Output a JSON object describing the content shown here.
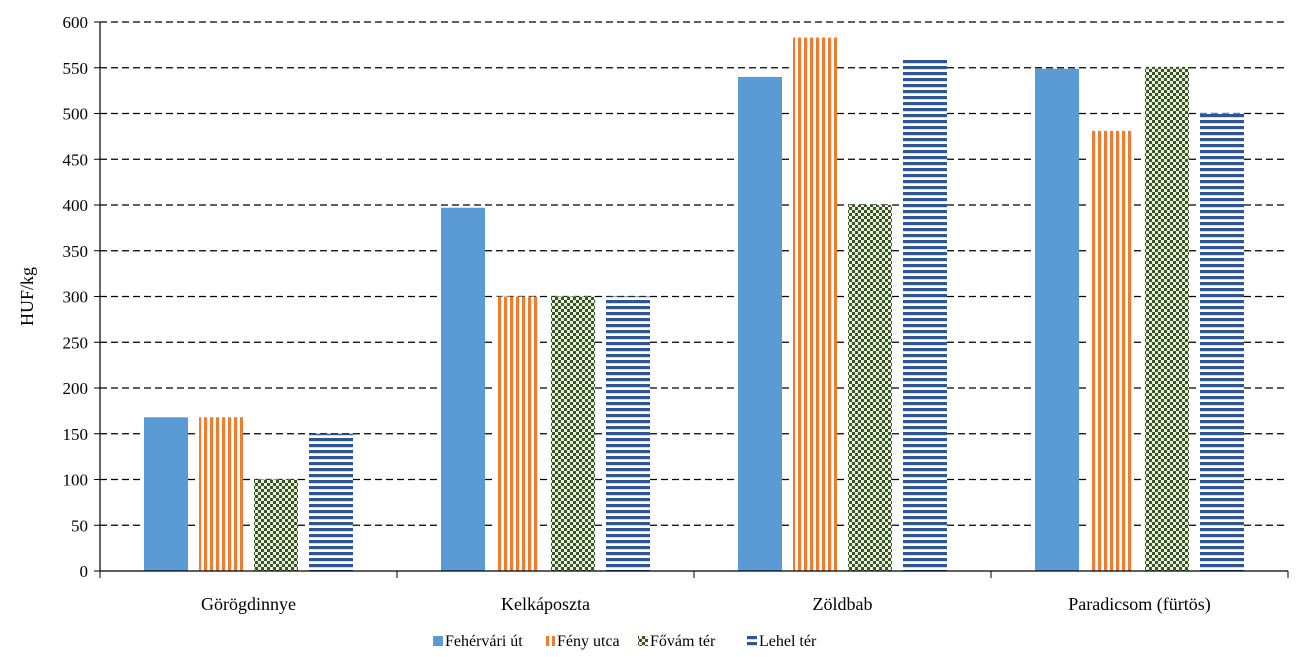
{
  "chart_data": {
    "type": "bar",
    "title": "",
    "xlabel": "",
    "ylabel": "HUF/kg",
    "ylim": [
      0,
      600
    ],
    "yticks": [
      0,
      50,
      100,
      150,
      200,
      250,
      300,
      350,
      400,
      450,
      500,
      550,
      600
    ],
    "grid": true,
    "legend_position": "bottom",
    "categories": [
      "Görögdinnye",
      "Kelkáposzta",
      "Zöldbab",
      "Paradicsom (fürtös)"
    ],
    "series": [
      {
        "name": "Fehérvári út",
        "values": [
          168,
          397,
          540,
          549
        ],
        "color": "#5b9bd5",
        "pattern": "solid"
      },
      {
        "name": "Fény utca",
        "values": [
          168,
          300,
          583,
          481
        ],
        "color": "#ed7d31",
        "pattern": "vertical-stripes"
      },
      {
        "name": "Fővám tér",
        "values": [
          100,
          300,
          400,
          551
        ],
        "color": "#375623",
        "pattern": "checker"
      },
      {
        "name": "Lehel tér",
        "values": [
          150,
          300,
          560,
          500
        ],
        "color": "#2f5597",
        "pattern": "horizontal-stripes"
      }
    ]
  }
}
